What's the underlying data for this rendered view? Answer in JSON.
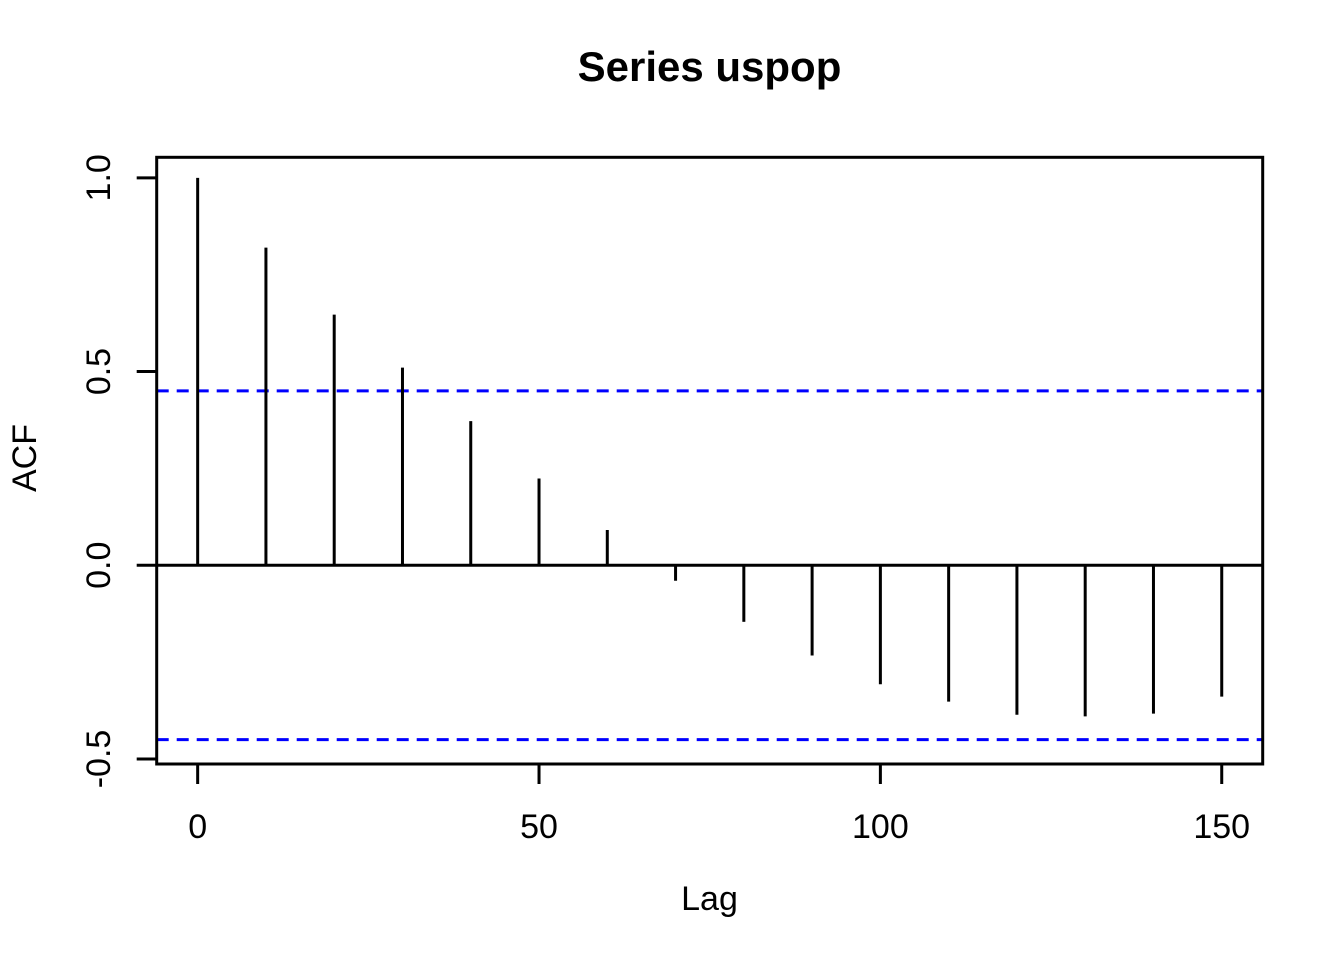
{
  "chart_data": {
    "type": "bar",
    "subtype": "acf-stem-plot",
    "title": "Series  uspop",
    "xlabel": "Lag",
    "ylabel": "ACF",
    "x": [
      0,
      10,
      20,
      30,
      40,
      50,
      60,
      70,
      80,
      90,
      100,
      110,
      120,
      130,
      140,
      150
    ],
    "values": [
      1.0,
      0.82,
      0.647,
      0.51,
      0.372,
      0.224,
      0.091,
      -0.04,
      -0.146,
      -0.233,
      -0.307,
      -0.352,
      -0.386,
      -0.39,
      -0.383,
      -0.339
    ],
    "confidence_interval": 0.45,
    "zero_line": true,
    "xticks": [
      0,
      50,
      100,
      150
    ],
    "xtick_labels": [
      "0",
      "50",
      "100",
      "150"
    ],
    "yticks": [
      1.0,
      0.5,
      0.0,
      -0.5
    ],
    "ytick_labels": [
      "1.0",
      "0.5",
      "0.0",
      "-0.5"
    ],
    "xlim": [
      -6,
      156
    ],
    "ylim": [
      -0.513,
      1.053
    ],
    "grid": false,
    "legend": null,
    "colors": {
      "line": "#000000",
      "confidence": "#0000ff",
      "background": "#ffffff",
      "text": "#000000"
    }
  }
}
